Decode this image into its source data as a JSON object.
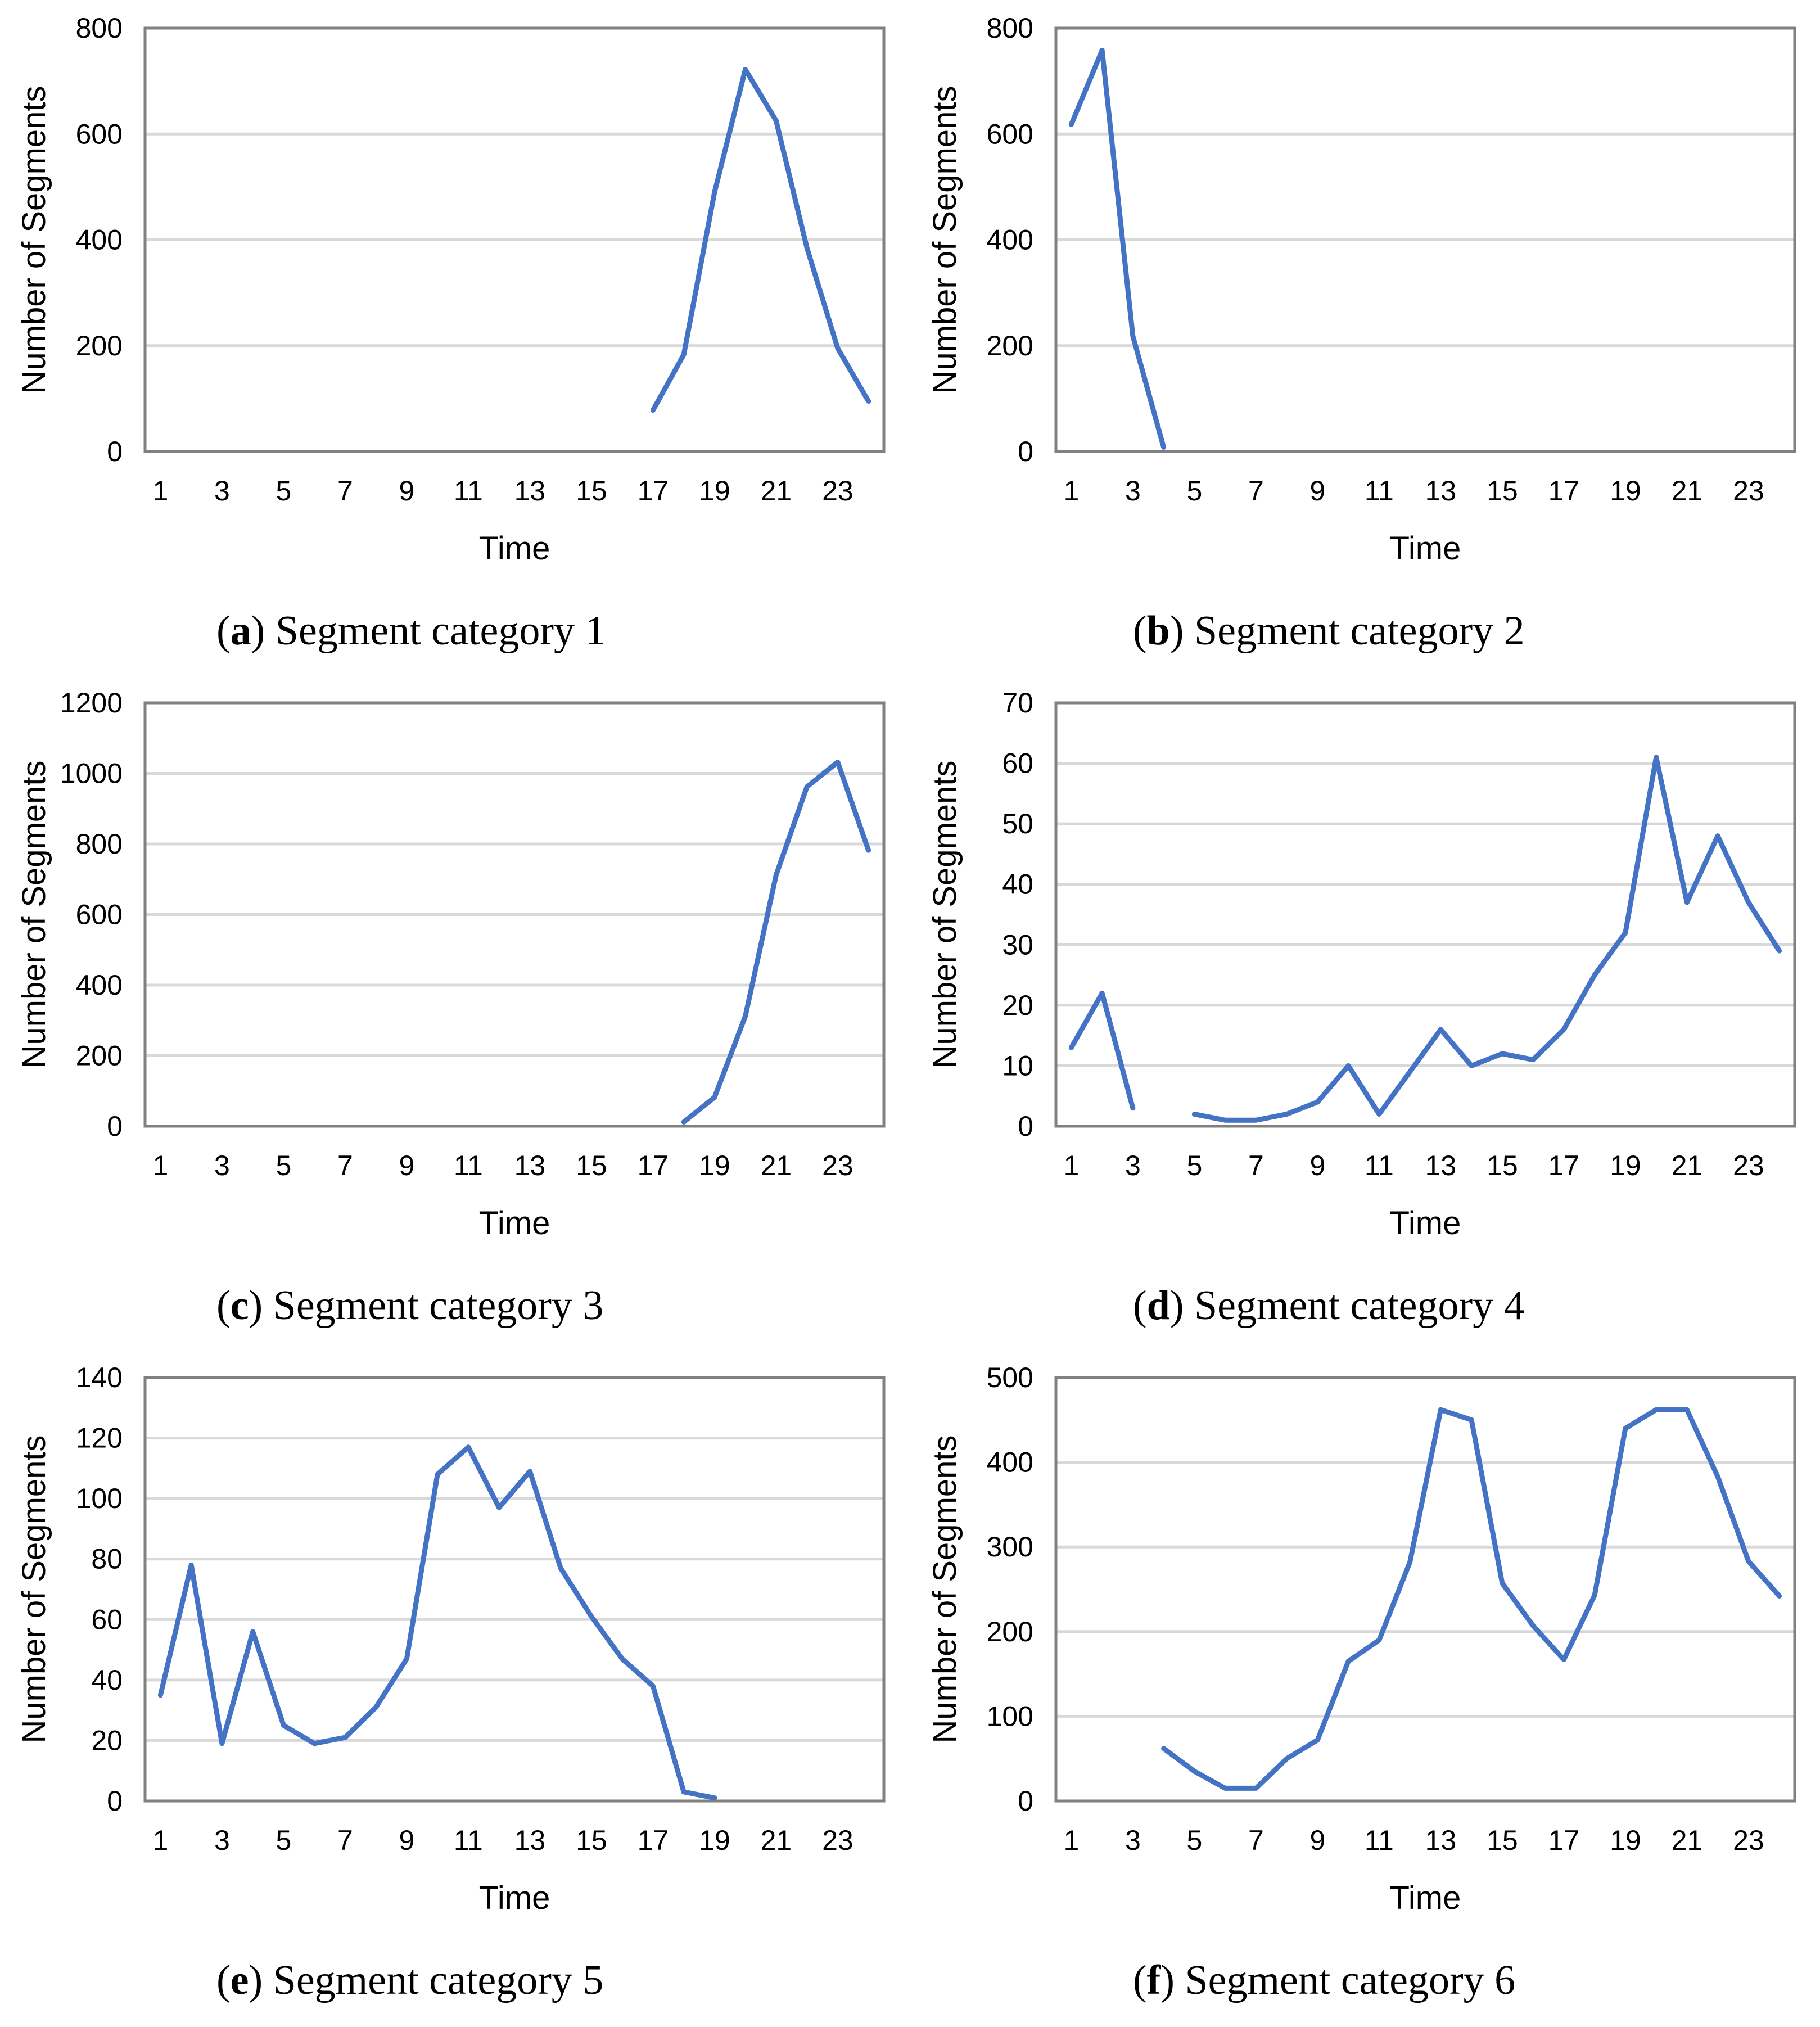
{
  "colors": {
    "line": "#4472C4",
    "grid": "#D9D9D9",
    "frame": "#808080",
    "text": "#000000"
  },
  "chart_data": [
    {
      "type": "line",
      "panel_letter": "a",
      "caption": "Segment category 1",
      "xlabel": "Time",
      "ylabel": "Number of Segments",
      "x": [
        1,
        2,
        3,
        4,
        5,
        6,
        7,
        8,
        9,
        10,
        11,
        12,
        13,
        14,
        15,
        16,
        17,
        18,
        19,
        20,
        21,
        22,
        23,
        24
      ],
      "x_tick_labels": [
        "1",
        "3",
        "5",
        "7",
        "9",
        "11",
        "13",
        "15",
        "17",
        "19",
        "21",
        "23"
      ],
      "ylim": [
        0,
        800
      ],
      "y_ticks": [
        0,
        200,
        400,
        600,
        800
      ],
      "grid": true,
      "series": [
        {
          "name": "Segment category 1",
          "values": [
            null,
            null,
            null,
            null,
            null,
            null,
            null,
            null,
            null,
            null,
            null,
            null,
            null,
            null,
            null,
            null,
            78,
            183,
            490,
            722,
            625,
            385,
            195,
            95
          ]
        }
      ]
    },
    {
      "type": "line",
      "panel_letter": "b",
      "caption": "Segment category 2",
      "xlabel": "Time",
      "ylabel": "Number of Segments",
      "x": [
        1,
        2,
        3,
        4,
        5,
        6,
        7,
        8,
        9,
        10,
        11,
        12,
        13,
        14,
        15,
        16,
        17,
        18,
        19,
        20,
        21,
        22,
        23,
        24
      ],
      "x_tick_labels": [
        "1",
        "3",
        "5",
        "7",
        "9",
        "11",
        "13",
        "15",
        "17",
        "19",
        "21",
        "23"
      ],
      "ylim": [
        0,
        800
      ],
      "y_ticks": [
        0,
        200,
        400,
        600,
        800
      ],
      "grid": true,
      "series": [
        {
          "name": "Segment category 2",
          "values": [
            618,
            758,
            218,
            8,
            null,
            null,
            null,
            null,
            null,
            null,
            null,
            null,
            null,
            null,
            null,
            null,
            null,
            null,
            null,
            null,
            null,
            null,
            null,
            null
          ]
        }
      ]
    },
    {
      "type": "line",
      "panel_letter": "c",
      "caption": "Segment category 3",
      "xlabel": "Time",
      "ylabel": "Number of Segments",
      "x": [
        1,
        2,
        3,
        4,
        5,
        6,
        7,
        8,
        9,
        10,
        11,
        12,
        13,
        14,
        15,
        16,
        17,
        18,
        19,
        20,
        21,
        22,
        23,
        24
      ],
      "x_tick_labels": [
        "1",
        "3",
        "5",
        "7",
        "9",
        "11",
        "13",
        "15",
        "17",
        "19",
        "21",
        "23"
      ],
      "ylim": [
        0,
        1200
      ],
      "y_ticks": [
        0,
        200,
        400,
        600,
        800,
        1000,
        1200
      ],
      "grid": true,
      "series": [
        {
          "name": "Segment category 3",
          "values": [
            null,
            null,
            null,
            null,
            null,
            null,
            null,
            null,
            null,
            null,
            null,
            null,
            null,
            null,
            null,
            null,
            null,
            12,
            82,
            312,
            712,
            962,
            1032,
            782
          ]
        }
      ]
    },
    {
      "type": "line",
      "panel_letter": "d",
      "caption": "Segment category 4",
      "xlabel": "Time",
      "ylabel": "Number of Segments",
      "x": [
        1,
        2,
        3,
        4,
        5,
        6,
        7,
        8,
        9,
        10,
        11,
        12,
        13,
        14,
        15,
        16,
        17,
        18,
        19,
        20,
        21,
        22,
        23,
        24
      ],
      "x_tick_labels": [
        "1",
        "3",
        "5",
        "7",
        "9",
        "11",
        "13",
        "15",
        "17",
        "19",
        "21",
        "23"
      ],
      "ylim": [
        0,
        70
      ],
      "y_ticks": [
        0,
        10,
        20,
        30,
        40,
        50,
        60,
        70
      ],
      "grid": true,
      "series": [
        {
          "name": "Segment category 4",
          "values": [
            13,
            22,
            3,
            null,
            2,
            1,
            1,
            2,
            4,
            10,
            2,
            9,
            16,
            10,
            12,
            11,
            16,
            25,
            32,
            61,
            37,
            48,
            37,
            29
          ]
        }
      ]
    },
    {
      "type": "line",
      "panel_letter": "e",
      "caption": "Segment category 5",
      "xlabel": "Time",
      "ylabel": "Number of Segments",
      "x": [
        1,
        2,
        3,
        4,
        5,
        6,
        7,
        8,
        9,
        10,
        11,
        12,
        13,
        14,
        15,
        16,
        17,
        18,
        19,
        20,
        21,
        22,
        23,
        24
      ],
      "x_tick_labels": [
        "1",
        "3",
        "5",
        "7",
        "9",
        "11",
        "13",
        "15",
        "17",
        "19",
        "21",
        "23"
      ],
      "ylim": [
        0,
        140
      ],
      "y_ticks": [
        0,
        20,
        40,
        60,
        80,
        100,
        120,
        140
      ],
      "grid": true,
      "series": [
        {
          "name": "Segment category 5",
          "values": [
            35,
            78,
            19,
            56,
            25,
            19,
            21,
            31,
            47,
            108,
            117,
            97,
            109,
            77,
            61,
            47,
            38,
            3,
            1,
            null,
            null,
            null,
            null,
            null
          ]
        }
      ]
    },
    {
      "type": "line",
      "panel_letter": "f",
      "caption": "Segment category 6",
      "xlabel": "Time",
      "ylabel": "Number of Segments",
      "x": [
        1,
        2,
        3,
        4,
        5,
        6,
        7,
        8,
        9,
        10,
        11,
        12,
        13,
        14,
        15,
        16,
        17,
        18,
        19,
        20,
        21,
        22,
        23,
        24
      ],
      "x_tick_labels": [
        "1",
        "3",
        "5",
        "7",
        "9",
        "11",
        "13",
        "15",
        "17",
        "19",
        "21",
        "23"
      ],
      "ylim": [
        0,
        500
      ],
      "y_ticks": [
        0,
        100,
        200,
        300,
        400,
        500
      ],
      "grid": true,
      "series": [
        {
          "name": "Segment category 6",
          "values": [
            null,
            null,
            null,
            62,
            35,
            15,
            15,
            50,
            72,
            165,
            190,
            282,
            462,
            450,
            257,
            207,
            167,
            243,
            440,
            462,
            462,
            383,
            283,
            242
          ]
        }
      ]
    }
  ]
}
